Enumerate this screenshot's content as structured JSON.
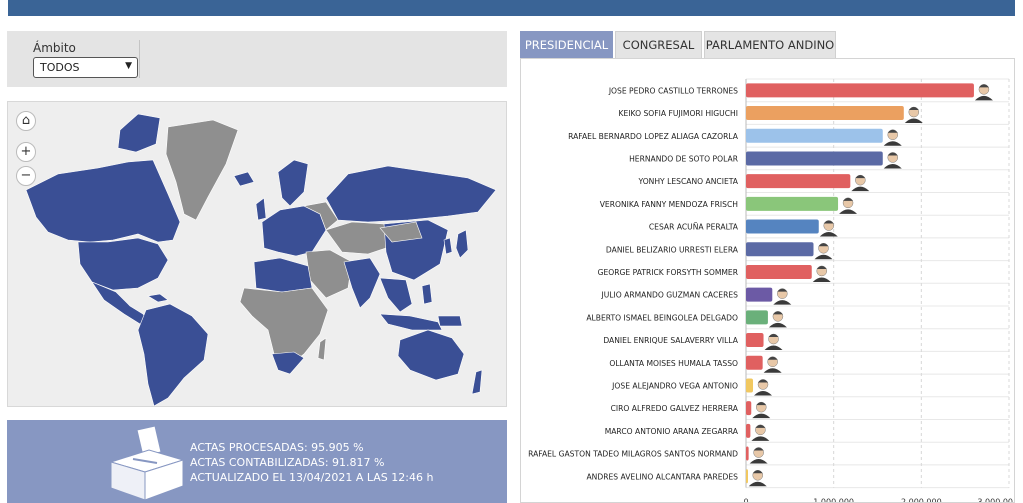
{
  "ambito": {
    "label": "Ámbito",
    "selected": "TODOS"
  },
  "map_controls": {
    "home": "⌂",
    "zoom_in": "+",
    "zoom_out": "−"
  },
  "stats": {
    "actas_procesadas": "ACTAS PROCESADAS: 95.905 %",
    "actas_contabilizadas": "ACTAS CONTABILIZADAS: 91.817 %",
    "actualizado": "ACTUALIZADO EL 13/04/2021 A LAS 12:46 h"
  },
  "tabs": [
    {
      "label": "PRESIDENCIAL",
      "active": true
    },
    {
      "label": "CONGRESAL",
      "active": false
    },
    {
      "label": "PARLAMENTO ANDINO",
      "active": false
    }
  ],
  "colors": {
    "map_country": "#3a4f95",
    "map_other": "#8f8f8f",
    "accent": "#8797c2",
    "topbar": "#3a6496"
  },
  "chart_data": {
    "type": "bar",
    "orientation": "horizontal",
    "xlim": [
      0,
      3000000
    ],
    "x_ticks": [
      "0",
      "1,000,000",
      "2,000,000",
      "3,000,00"
    ],
    "grid": true,
    "categories": [
      "JOSE PEDRO CASTILLO TERRONES",
      "KEIKO SOFIA FUJIMORI HIGUCHI",
      "RAFAEL BERNARDO LOPEZ ALIAGA CAZORLA",
      "HERNANDO DE SOTO POLAR",
      "YONHY LESCANO ANCIETA",
      "VERONIKA FANNY MENDOZA FRISCH",
      "CESAR ACUÑA PERALTA",
      "DANIEL BELIZARIO URRESTI ELERA",
      "GEORGE PATRICK FORSYTH SOMMER",
      "JULIO ARMANDO GUZMAN CACERES",
      "ALBERTO ISMAEL BEINGOLEA DELGADO",
      "DANIEL ENRIQUE SALAVERRY VILLA",
      "OLLANTA MOISES HUMALA TASSO",
      "JOSE ALEJANDRO VEGA ANTONIO",
      "CIRO ALFREDO GALVEZ HERRERA",
      "MARCO ANTONIO ARANA ZEGARRA",
      "RAFAEL GASTON TADEO MILAGROS SANTOS NORMAND",
      "ANDRES AVELINO ALCANTARA PAREDES"
    ],
    "values": [
      2600000,
      1800000,
      1560000,
      1560000,
      1190000,
      1050000,
      830000,
      770000,
      750000,
      300000,
      250000,
      200000,
      190000,
      80000,
      60000,
      50000,
      30000,
      20000
    ],
    "bar_colors": [
      "#e06060",
      "#eba060",
      "#9cc2ea",
      "#5b6aa5",
      "#e06060",
      "#8ac67a",
      "#5584c0",
      "#5b6aa5",
      "#e06060",
      "#6c5aa5",
      "#6ab07a",
      "#e06060",
      "#e06060",
      "#f1c860",
      "#e06060",
      "#e06060",
      "#e06060",
      "#f1c860"
    ]
  }
}
